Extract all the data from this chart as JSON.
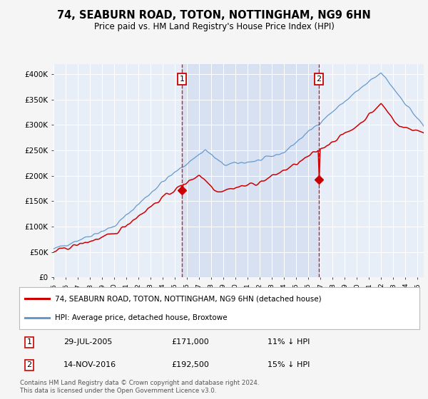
{
  "title": "74, SEABURN ROAD, TOTON, NOTTINGHAM, NG9 6HN",
  "subtitle": "Price paid vs. HM Land Registry's House Price Index (HPI)",
  "bg_color": "#f5f5f5",
  "plot_bg_color": "#e8eef8",
  "shade_color": "#d0dcf0",
  "ylim": [
    0,
    420000
  ],
  "yticks": [
    0,
    50000,
    100000,
    150000,
    200000,
    250000,
    300000,
    350000,
    400000
  ],
  "ytick_labels": [
    "£0",
    "£50K",
    "£100K",
    "£150K",
    "£200K",
    "£250K",
    "£300K",
    "£350K",
    "£400K"
  ],
  "xlim_start": 1995,
  "xlim_end": 2025.5,
  "sale1_year": 2005.58,
  "sale1_price": 171000,
  "sale2_year": 2016.87,
  "sale2_price": 192500,
  "sale1_date": "29-JUL-2005",
  "sale2_date": "14-NOV-2016",
  "sale1_hpi_diff": "11% ↓ HPI",
  "sale2_hpi_diff": "15% ↓ HPI",
  "legend_property": "74, SEABURN ROAD, TOTON, NOTTINGHAM, NG9 6HN (detached house)",
  "legend_hpi": "HPI: Average price, detached house, Broxtowe",
  "footer": "Contains HM Land Registry data © Crown copyright and database right 2024.\nThis data is licensed under the Open Government Licence v3.0.",
  "hpi_color": "#6699cc",
  "property_color": "#cc0000",
  "vline_color": "#cc0000",
  "grid_color": "#d0d0d0",
  "marker_color": "#cc0000"
}
